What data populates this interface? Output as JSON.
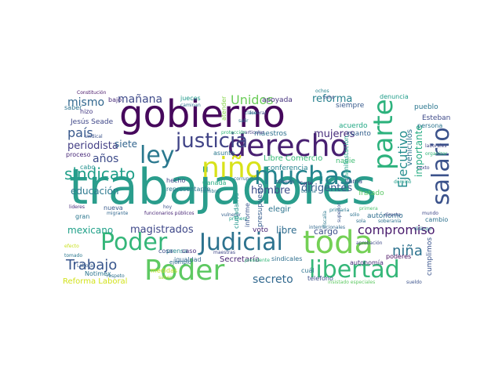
{
  "words": [
    {
      "text": "trabajadores",
      "color": "#2a9d8c"
    },
    {
      "text": "gobierno",
      "color": "#46085c"
    },
    {
      "text": "derecho",
      "color": "#482071"
    },
    {
      "text": "Poder",
      "color": "#34b679"
    },
    {
      "text": "Judicial",
      "color": "#2c728e"
    },
    {
      "text": "toda",
      "color": "#74d055"
    },
    {
      "text": "niño",
      "color": "#d8e219"
    },
    {
      "text": "justicia",
      "color": "#414487"
    },
    {
      "text": "libertad",
      "color": "#35b779"
    },
    {
      "text": "muchas",
      "color": "#25848e"
    },
    {
      "text": "ley",
      "color": "#2a788e"
    },
    {
      "text": "Poder",
      "color": "#5ec962"
    },
    {
      "text": "parte",
      "color": "#2db27d"
    },
    {
      "text": "salario",
      "color": "#3b528b"
    },
    {
      "text": "sindicato",
      "color": "#1f9e89"
    },
    {
      "text": "Trabajo",
      "color": "#39568c"
    },
    {
      "text": "compromiso",
      "color": "#481a6c"
    },
    {
      "text": "Ejecutivo",
      "color": "#228c8d"
    },
    {
      "text": "niña",
      "color": "#2c718e"
    },
    {
      "text": "país",
      "color": "#38588c"
    },
    {
      "text": "mismo",
      "color": "#31678e"
    },
    {
      "text": "mañana",
      "color": "#3e4a89"
    },
    {
      "text": "Unidos",
      "color": "#6ccd5a"
    },
    {
      "text": "reforma",
      "color": "#27808e"
    },
    {
      "text": "años",
      "color": "#3e4c8a"
    },
    {
      "text": "periodista",
      "color": "#433e85"
    },
    {
      "text": "mujeres",
      "color": "#472d7b"
    },
    {
      "text": "secreto",
      "color": "#31688e"
    },
    {
      "text": "magistrados",
      "color": "#3f4889"
    },
    {
      "text": "dirigentes",
      "color": "#365c8d"
    },
    {
      "text": "hombre",
      "color": "#3d4d8a"
    },
    {
      "text": "educación",
      "color": "#2a788e"
    },
    {
      "text": "mexicano",
      "color": "#1fa088"
    },
    {
      "text": "libre",
      "color": "#2f6c8e"
    },
    {
      "text": "cargo",
      "color": "#3c4f8a"
    },
    {
      "text": "siete",
      "color": "#32648e"
    },
    {
      "text": "importante",
      "color": "#25ac82"
    },
    {
      "text": "vehículos",
      "color": "#2c728e"
    },
    {
      "text": "Reforma Laboral",
      "color": "#d2e21b"
    },
    {
      "text": "Secretaría",
      "color": "#482475"
    },
    {
      "text": "Libre Comercio",
      "color": "#38b977"
    },
    {
      "text": "elegir",
      "color": "#2c738e"
    },
    {
      "text": "conferencia",
      "color": "#26828e"
    },
    {
      "text": "apoyada",
      "color": "#46337e"
    },
    {
      "text": "presupuesto",
      "color": "#365d8d"
    },
    {
      "text": "maestros",
      "color": "#2d708e"
    },
    {
      "text": "autónomo",
      "color": "#2e6e8e"
    },
    {
      "text": "Tratado",
      "color": "#5ac864"
    },
    {
      "text": "voto",
      "color": "#482878"
    },
    {
      "text": "cumplimos",
      "color": "#3a548c"
    },
    {
      "text": "pueblo",
      "color": "#2a768e"
    },
    {
      "text": "Esteban",
      "color": "#3e4a89"
    },
    {
      "text": "siempre",
      "color": "#375a8c"
    },
    {
      "text": "denuncia",
      "color": "#1e9c89"
    },
    {
      "text": "acuerdo",
      "color": "#22a884"
    },
    {
      "text": "cuanto",
      "color": "#34608d"
    },
    {
      "text": "nadie",
      "color": "#3fbc73"
    },
    {
      "text": "representante",
      "color": "#2b758e"
    },
    {
      "text": "prensa",
      "color": "#25858e"
    },
    {
      "text": "Canadá",
      "color": "#27ad81"
    },
    {
      "text": "igualdad",
      "color": "#31678e"
    },
    {
      "text": "sindicales",
      "color": "#2e6f8e"
    },
    {
      "text": "poderes",
      "color": "#460b5e"
    },
    {
      "text": "cambio",
      "color": "#2d718e"
    },
    {
      "text": "asunto",
      "color": "#2a788e"
    },
    {
      "text": "hecho",
      "color": "#3e4989"
    },
    {
      "text": "caso",
      "color": "#472f7d"
    },
    {
      "text": "Jesús Seade",
      "color": "#3f4788"
    },
    {
      "text": "cabo",
      "color": "#21908d"
    },
    {
      "text": "hizo",
      "color": "#443983"
    },
    {
      "text": "saber",
      "color": "#2c718e"
    },
    {
      "text": "proceso",
      "color": "#482979"
    },
    {
      "text": "nueva",
      "color": "#38598c"
    },
    {
      "text": "gran",
      "color": "#2a768e"
    },
    {
      "text": "ciudadanos",
      "color": "#1f958b"
    },
    {
      "text": "persona",
      "color": "#2b748e"
    },
    {
      "text": "medidas",
      "color": "#c2df23"
    },
    {
      "text": "Notimex",
      "color": "#2b758e"
    },
    {
      "text": "autonomía",
      "color": "#472a7a"
    },
    {
      "text": "cuál",
      "color": "#2c728e"
    },
    {
      "text": "telefono",
      "color": "#3d4e8a"
    },
    {
      "text": "informe",
      "color": "#3a548c"
    },
    {
      "text": "manifestación",
      "color": "#20a386"
    },
    {
      "text": "jueces",
      "color": "#1f9a8a"
    },
    {
      "text": "caminan",
      "color": "#2c728e"
    },
    {
      "text": "llama",
      "color": "#3a538b"
    },
    {
      "text": "atender",
      "color": "#86d549"
    },
    {
      "text": "nombre",
      "color": "#2a788e"
    },
    {
      "text": "vulnerar",
      "color": "#34618d"
    },
    {
      "text": "ejemplo",
      "color": "#2e6e8e"
    },
    {
      "text": "cosa",
      "color": "#3c4f8a"
    },
    {
      "text": "funcionarios públicos",
      "color": "#482576"
    },
    {
      "text": "Constitución",
      "color": "#481769"
    },
    {
      "text": "bajo",
      "color": "#472c7a"
    },
    {
      "text": "sindical",
      "color": "#3b528b"
    },
    {
      "text": "ochos",
      "color": "#26818e"
    },
    {
      "text": "presidente",
      "color": "#35b779"
    },
    {
      "text": "maestras",
      "color": "#3f4788"
    },
    {
      "text": "respeto",
      "color": "#2d708e"
    },
    {
      "text": "saben",
      "color": "#a5db36"
    },
    {
      "text": "tomado",
      "color": "#2a788e"
    },
    {
      "text": "sueldo",
      "color": "#3b528b"
    },
    {
      "text": "insistado especiales",
      "color": "#5ec962"
    },
    {
      "text": "aprobación",
      "color": "#3e4a89"
    },
    {
      "text": "internacionales",
      "color": "#31688e"
    },
    {
      "text": "diálogo",
      "color": "#2a768e"
    },
    {
      "text": "primera",
      "color": "#4ac16d"
    },
    {
      "text": "sólo",
      "color": "#2c728e"
    },
    {
      "text": "mundo",
      "color": "#3f4889"
    },
    {
      "text": "Laboral",
      "color": "#365c8d"
    },
    {
      "text": "corrupción",
      "color": "#2e6e8e"
    },
    {
      "text": "federal",
      "color": "#3d4d8a"
    },
    {
      "text": "particular",
      "color": "#433e85"
    },
    {
      "text": "protección",
      "color": "#35b779"
    },
    {
      "text": "lideres",
      "color": "#472d7b"
    },
    {
      "text": "efecto",
      "color": "#c8e020"
    },
    {
      "text": "buena",
      "color": "#2a768e"
    },
    {
      "text": "ocho",
      "color": "#3e4a89"
    },
    {
      "text": "salir",
      "color": "#2c728e"
    },
    {
      "text": "primero",
      "color": "#1fa088"
    },
    {
      "text": "hoy",
      "color": "#3b528b"
    },
    {
      "text": "migrante",
      "color": "#31678e"
    },
    {
      "text": "clase",
      "color": "#2a788e"
    },
    {
      "text": "superior",
      "color": "#3a548c"
    },
    {
      "text": "Corte",
      "color": "#472f7d"
    },
    {
      "text": "directo",
      "color": "#3e4c8a"
    },
    {
      "text": "soberanía",
      "color": "#2c728e"
    },
    {
      "text": "organizar",
      "color": "#35b779"
    },
    {
      "text": "laborales",
      "color": "#414487"
    },
    {
      "text": "fiscalía",
      "color": "#2a788e"
    },
    {
      "text": "término",
      "color": "#3b528b"
    },
    {
      "text": "sola",
      "color": "#2d708e"
    },
    {
      "text": "texto",
      "color": "#3f4788"
    },
    {
      "text": "dominó",
      "color": "#1f9e89"
    },
    {
      "text": "primaria",
      "color": "#2a768e"
    }
  ]
}
